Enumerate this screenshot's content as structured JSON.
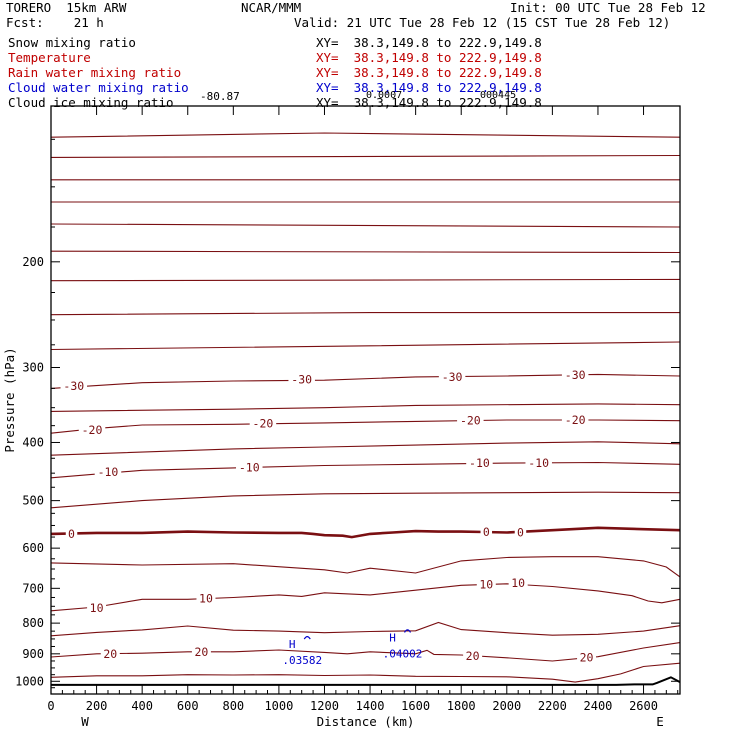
{
  "header": {
    "model": "TORERO  15km ARW",
    "center": "NCAR/MMM",
    "init": "Init: 00 UTC Tue 28 Feb 12",
    "fcst": "Fcst:    21 h",
    "valid": "Valid: 21 UTC Tue 28 Feb 12 (15 CST Tue 28 Feb 12)",
    "fields": [
      {
        "name": "Snow mixing ratio",
        "xy": "XY=  38.3,149.8 to 222.9,149.8",
        "color": "#000000"
      },
      {
        "name": "Temperature",
        "xy": "XY=  38.3,149.8 to 222.9,149.8",
        "color": "#c00000"
      },
      {
        "name": "Rain water mixing ratio",
        "xy": "XY=  38.3,149.8 to 222.9,149.8",
        "color": "#c00000"
      },
      {
        "name": "Cloud water mixing ratio",
        "xy": "XY=  38.3,149.8 to 222.9,149.8",
        "color": "#0000cc"
      },
      {
        "name": "Cloud ice mixing ratio",
        "xy": "XY=  38.3,149.8 to 222.9,149.8",
        "color": "#000000"
      }
    ],
    "overprint": [
      "-80.87",
      "0.0007",
      "000445"
    ]
  },
  "colors": {
    "temperature": "#7a0f12",
    "zero_isotherm": "#7a0f12",
    "cloud_water": "#0000cc",
    "ground": "#000000"
  },
  "chart_data": {
    "type": "line",
    "title": "",
    "xlabel": "Distance (km)",
    "ylabel": "Pressure (hPa)",
    "xlim": [
      0,
      2760
    ],
    "ylim": [
      1050,
      110
    ],
    "y_scale": "log",
    "x_ticks": [
      0,
      200,
      400,
      600,
      800,
      1000,
      1200,
      1400,
      1600,
      1800,
      2000,
      2200,
      2400,
      2600
    ],
    "y_ticks": [
      200,
      300,
      400,
      500,
      600,
      700,
      800,
      900,
      1000
    ],
    "x_end_labels": {
      "left": "W",
      "right": "E"
    },
    "isotherms": [
      {
        "temp": -80,
        "points": [
          [
            0,
            124
          ],
          [
            1200,
            122
          ],
          [
            2760,
            124
          ]
        ]
      },
      {
        "temp": -70,
        "points": [
          [
            0,
            134
          ],
          [
            2760,
            133
          ]
        ]
      },
      {
        "temp": -65,
        "points": [
          [
            0,
            146
          ],
          [
            2760,
            146
          ]
        ]
      },
      {
        "temp": -60,
        "points": [
          [
            0,
            159
          ],
          [
            2760,
            159
          ]
        ]
      },
      {
        "temp": -55,
        "points": [
          [
            0,
            173
          ],
          [
            2760,
            175
          ]
        ]
      },
      {
        "temp": -50,
        "points": [
          [
            0,
            192
          ],
          [
            2760,
            193
          ]
        ]
      },
      {
        "temp": -45,
        "points": [
          [
            0,
            215
          ],
          [
            2760,
            214
          ]
        ]
      },
      {
        "temp": -40,
        "points": [
          [
            0,
            245
          ],
          [
            1400,
            243
          ],
          [
            2760,
            243
          ]
        ]
      },
      {
        "temp": -35,
        "points": [
          [
            0,
            280
          ],
          [
            1400,
            276
          ],
          [
            2760,
            272
          ]
        ]
      },
      {
        "temp": -30,
        "points": [
          [
            0,
            325
          ],
          [
            400,
            318
          ],
          [
            800,
            316
          ],
          [
            1200,
            315
          ],
          [
            1600,
            311
          ],
          [
            2000,
            310
          ],
          [
            2400,
            308
          ],
          [
            2760,
            310
          ]
        ]
      },
      {
        "temp": -25,
        "points": [
          [
            0,
            355
          ],
          [
            800,
            352
          ],
          [
            1200,
            350
          ],
          [
            1600,
            347
          ],
          [
            2400,
            345
          ],
          [
            2760,
            346
          ]
        ]
      },
      {
        "temp": -20,
        "points": [
          [
            0,
            386
          ],
          [
            200,
            379
          ],
          [
            400,
            374
          ],
          [
            800,
            373
          ],
          [
            1200,
            371
          ],
          [
            1600,
            369
          ],
          [
            2000,
            367
          ],
          [
            2400,
            367
          ],
          [
            2760,
            368
          ]
        ]
      },
      {
        "temp": -15,
        "points": [
          [
            0,
            420
          ],
          [
            800,
            410
          ],
          [
            1200,
            407
          ],
          [
            1600,
            404
          ],
          [
            2000,
            401
          ],
          [
            2400,
            399
          ],
          [
            2760,
            402
          ]
        ]
      },
      {
        "temp": -10,
        "points": [
          [
            0,
            458
          ],
          [
            400,
            445
          ],
          [
            800,
            441
          ],
          [
            1200,
            437
          ],
          [
            1600,
            435
          ],
          [
            2000,
            433
          ],
          [
            2400,
            432
          ],
          [
            2760,
            435
          ]
        ]
      },
      {
        "temp": -5,
        "points": [
          [
            0,
            514
          ],
          [
            400,
            500
          ],
          [
            800,
            491
          ],
          [
            1200,
            487
          ],
          [
            1600,
            486
          ],
          [
            2000,
            485
          ],
          [
            2400,
            484
          ],
          [
            2760,
            485
          ]
        ]
      },
      {
        "temp": 5,
        "points": [
          [
            0,
            635
          ],
          [
            400,
            640
          ],
          [
            800,
            637
          ],
          [
            1200,
            652
          ],
          [
            1300,
            660
          ],
          [
            1400,
            648
          ],
          [
            1600,
            660
          ],
          [
            1800,
            630
          ],
          [
            2000,
            622
          ],
          [
            2200,
            620
          ],
          [
            2400,
            620
          ],
          [
            2600,
            630
          ],
          [
            2700,
            645
          ],
          [
            2760,
            670
          ]
        ]
      },
      {
        "temp": 10,
        "points": [
          [
            0,
            763
          ],
          [
            200,
            752
          ],
          [
            400,
            730
          ],
          [
            600,
            730
          ],
          [
            800,
            725
          ],
          [
            1000,
            718
          ],
          [
            1100,
            722
          ],
          [
            1200,
            712
          ],
          [
            1400,
            718
          ],
          [
            1600,
            705
          ],
          [
            1800,
            692
          ],
          [
            1900,
            690
          ],
          [
            2000,
            688
          ],
          [
            2200,
            695
          ],
          [
            2400,
            707
          ],
          [
            2550,
            720
          ],
          [
            2620,
            735
          ],
          [
            2680,
            740
          ],
          [
            2760,
            730
          ]
        ]
      },
      {
        "temp": 15,
        "points": [
          [
            0,
            840
          ],
          [
            200,
            829
          ],
          [
            400,
            821
          ],
          [
            600,
            809
          ],
          [
            800,
            822
          ],
          [
            1000,
            825
          ],
          [
            1200,
            830
          ],
          [
            1400,
            826
          ],
          [
            1600,
            824
          ],
          [
            1700,
            798
          ],
          [
            1800,
            820
          ],
          [
            2000,
            830
          ],
          [
            2200,
            838
          ],
          [
            2400,
            835
          ],
          [
            2600,
            825
          ],
          [
            2760,
            808
          ]
        ]
      },
      {
        "temp": 20,
        "points": [
          [
            0,
            911
          ],
          [
            200,
            900
          ],
          [
            400,
            898
          ],
          [
            600,
            893
          ],
          [
            800,
            893
          ],
          [
            1000,
            887
          ],
          [
            1200,
            895
          ],
          [
            1300,
            900
          ],
          [
            1400,
            893
          ],
          [
            1600,
            900
          ],
          [
            1650,
            888
          ],
          [
            1680,
            902
          ],
          [
            1800,
            904
          ],
          [
            2000,
            914
          ],
          [
            2200,
            925
          ],
          [
            2400,
            910
          ],
          [
            2600,
            880
          ],
          [
            2760,
            862
          ]
        ]
      },
      {
        "temp": 25,
        "points": [
          [
            0,
            985
          ],
          [
            200,
            979
          ],
          [
            400,
            979
          ],
          [
            600,
            975
          ],
          [
            800,
            976
          ],
          [
            1000,
            975
          ],
          [
            1200,
            978
          ],
          [
            1400,
            976
          ],
          [
            1600,
            981
          ],
          [
            1800,
            982
          ],
          [
            2000,
            983
          ],
          [
            2200,
            992
          ],
          [
            2300,
            1003
          ],
          [
            2400,
            990
          ],
          [
            2500,
            972
          ],
          [
            2600,
            945
          ],
          [
            2760,
            933
          ]
        ]
      }
    ],
    "zero_isotherm": [
      [
        0,
        568
      ],
      [
        200,
        566
      ],
      [
        400,
        566
      ],
      [
        600,
        563
      ],
      [
        800,
        565
      ],
      [
        1000,
        566
      ],
      [
        1100,
        566
      ],
      [
        1150,
        568
      ],
      [
        1200,
        571
      ],
      [
        1280,
        572
      ],
      [
        1320,
        575
      ],
      [
        1400,
        568
      ],
      [
        1500,
        565
      ],
      [
        1600,
        562
      ],
      [
        1700,
        563
      ],
      [
        1800,
        563
      ],
      [
        1900,
        564
      ],
      [
        2000,
        565
      ],
      [
        2200,
        560
      ],
      [
        2400,
        555
      ],
      [
        2600,
        558
      ],
      [
        2760,
        560
      ]
    ],
    "ground": [
      [
        0,
        1014
      ],
      [
        2480,
        1014
      ],
      [
        2560,
        1012
      ],
      [
        2640,
        1012
      ],
      [
        2660,
        1006
      ],
      [
        2720,
        985
      ],
      [
        2760,
        1003
      ]
    ],
    "contour_labels": [
      {
        "text": "-30",
        "x": 100,
        "p": 322
      },
      {
        "text": "-30",
        "x": 1100,
        "p": 314
      },
      {
        "text": "-30",
        "x": 1760,
        "p": 311
      },
      {
        "text": "-30",
        "x": 2300,
        "p": 309
      },
      {
        "text": "-20",
        "x": 180,
        "p": 381
      },
      {
        "text": "-20",
        "x": 930,
        "p": 372
      },
      {
        "text": "-20",
        "x": 1840,
        "p": 368
      },
      {
        "text": "-20",
        "x": 2300,
        "p": 367
      },
      {
        "text": "-10",
        "x": 250,
        "p": 448
      },
      {
        "text": "-10",
        "x": 870,
        "p": 440
      },
      {
        "text": "-10",
        "x": 1880,
        "p": 433
      },
      {
        "text": "-10",
        "x": 2140,
        "p": 433
      },
      {
        "text": "0",
        "x": 90,
        "p": 568
      },
      {
        "text": "0",
        "x": 1910,
        "p": 564
      },
      {
        "text": "0",
        "x": 2060,
        "p": 565
      },
      {
        "text": "10",
        "x": 200,
        "p": 755
      },
      {
        "text": "10",
        "x": 680,
        "p": 728
      },
      {
        "text": "10",
        "x": 1910,
        "p": 690
      },
      {
        "text": "10",
        "x": 2050,
        "p": 686
      },
      {
        "text": "20",
        "x": 260,
        "p": 900
      },
      {
        "text": "20",
        "x": 660,
        "p": 893
      },
      {
        "text": "20",
        "x": 1850,
        "p": 907
      },
      {
        "text": "20",
        "x": 2350,
        "p": 912
      }
    ],
    "cloud_water": [
      {
        "label": "H",
        "x": 1120,
        "p": 867,
        "value": ".03582"
      },
      {
        "label": "H",
        "x": 1560,
        "p": 845,
        "value": ".04002"
      }
    ]
  }
}
